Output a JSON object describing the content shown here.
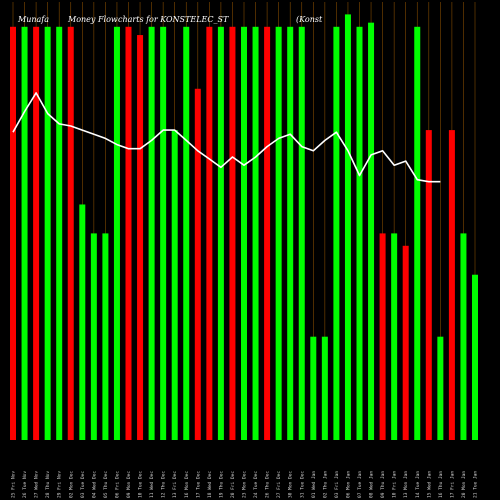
{
  "chart_data": {
    "type": "bar",
    "title_parts": [
      "Munafa",
      "Money Flow",
      "charts for KONSTELEC_ST",
      "(Konst"
    ],
    "title_full": "Munafa Money Flow charts for KONSTELEC_ST (Konst",
    "categories": [
      "25 Fri Nov",
      "26 Tue Nov",
      "27 Wed Nov",
      "28 Thu Nov",
      "29 Fri Nov",
      "02 Mon Dec",
      "03 Tue Dec",
      "04 Wed Dec",
      "05 Thu Dec",
      "06 Fri Dec",
      "09 Mon Dec",
      "10 Tue Dec",
      "11 Wed Dec",
      "12 Thu Dec",
      "13 Fri Dec",
      "16 Mon Dec",
      "17 Tue Dec",
      "18 Wed Dec",
      "19 Thu Dec",
      "20 Fri Dec",
      "23 Mon Dec",
      "24 Tue Dec",
      "26 Thu Dec",
      "27 Fri Dec",
      "30 Mon Dec",
      "31 Tue Dec",
      "01 Wed Jan",
      "02 Thu Jan",
      "03 Fri Jan",
      "06 Mon Jan",
      "07 Tue Jan",
      "08 Wed Jan",
      "09 Thu Jan",
      "10 Fri Jan",
      "13 Mon Jan",
      "14 Tue Jan",
      "15 Wed Jan",
      "16 Thu Jan",
      "17 Fri Jan",
      "20 Mon Jan",
      "21 Tue Jan"
    ],
    "bar_colors": [
      "red",
      "green",
      "red",
      "green",
      "green",
      "red",
      "green",
      "green",
      "green",
      "green",
      "red",
      "red",
      "green",
      "green",
      "green",
      "green",
      "red",
      "red",
      "green",
      "red",
      "green",
      "green",
      "red",
      "green",
      "green",
      "green",
      "green",
      "green",
      "green",
      "green",
      "green",
      "green",
      "red",
      "green",
      "red",
      "green",
      "red",
      "green",
      "red",
      "green",
      "green"
    ],
    "values": [
      100,
      100,
      100,
      100,
      100,
      100,
      57,
      50,
      50,
      100,
      100,
      98,
      100,
      100,
      75,
      100,
      85,
      100,
      100,
      100,
      100,
      100,
      100,
      100,
      100,
      100,
      25,
      25,
      100,
      103,
      100,
      101,
      50,
      50,
      47,
      100,
      75,
      25,
      75,
      50,
      40
    ],
    "line": [
      74.5,
      79.5,
      84,
      79,
      76.5,
      76,
      75,
      74,
      73,
      71.5,
      70.5,
      70.5,
      72.5,
      75,
      75,
      72.5,
      70,
      68,
      66,
      68.5,
      66.5,
      68.5,
      71,
      73,
      74,
      71,
      70,
      72.5,
      74.5,
      70,
      64,
      69,
      70,
      66.5,
      67.5,
      63,
      62.5,
      62.5
    ],
    "line_start_index": 0,
    "ylim": [
      0,
      106
    ],
    "xlabel": "",
    "ylabel": "",
    "grid": false,
    "colors": {
      "background": "#000000",
      "green": "#00ff00",
      "red": "#ff0000",
      "line": "#ffffff",
      "guide": "#b86a00",
      "text": "#ffffff"
    }
  }
}
